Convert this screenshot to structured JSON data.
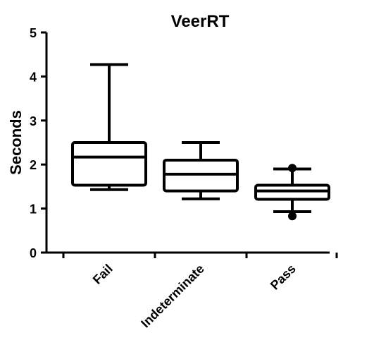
{
  "chart_data": {
    "type": "box",
    "title": "VeerRT",
    "xlabel": "",
    "ylabel": "Seconds",
    "ylim": [
      0,
      5
    ],
    "yticks": [
      "0",
      "1",
      "2",
      "3",
      "4",
      "5"
    ],
    "grid": false,
    "categories": [
      "Fail",
      "Indeterminate",
      "Pass"
    ],
    "boxes": [
      {
        "category": "Fail",
        "whisker_low": 1.43,
        "q1": 1.53,
        "median": 2.17,
        "q3": 2.5,
        "whisker_high": 4.27,
        "outliers": []
      },
      {
        "category": "Indeterminate",
        "whisker_low": 1.22,
        "q1": 1.4,
        "median": 1.78,
        "q3": 2.1,
        "whisker_high": 2.5,
        "outliers": []
      },
      {
        "category": "Pass",
        "whisker_low": 0.93,
        "q1": 1.21,
        "median": 1.4,
        "q3": 1.53,
        "whisker_high": 1.9,
        "outliers": [
          0.83,
          1.92
        ]
      }
    ]
  }
}
